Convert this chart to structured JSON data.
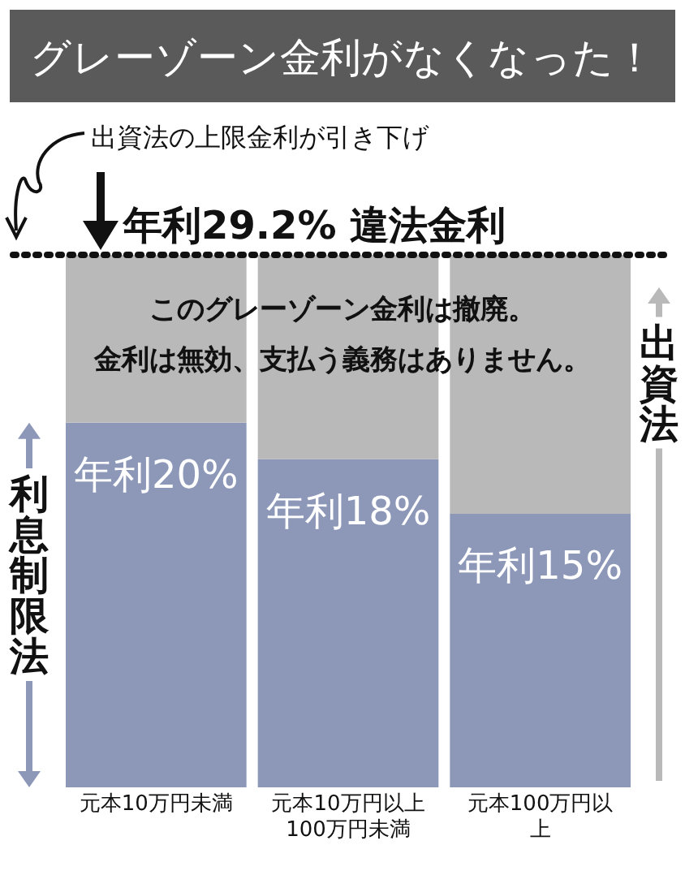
{
  "chart_data": {
    "type": "bar",
    "title": "グレーゾーン金利がなくなった！",
    "categories": [
      "元本10万円未満",
      "元本10万円以上100万円未満",
      "元本100万円以上"
    ],
    "series": [
      {
        "name": "利息制限法",
        "color": "#8d98b8",
        "values": [
          20,
          18,
          15
        ],
        "value_labels": [
          "年利20%",
          "年利18%",
          "年利15%"
        ]
      },
      {
        "name": "出資法",
        "color": "#b9b9b9",
        "values": [
          9.2,
          11.2,
          14.2
        ]
      }
    ],
    "stacked": true,
    "legend": "left",
    "ref_lines": [
      {
        "axis": "y",
        "value": 29.2,
        "label": "年利29.2% 違法金利",
        "line_style": "dotted",
        "color": "#111111"
      }
    ],
    "annotations": [
      "出資法の上限金利が引き下げ",
      "このグレーゾーン金利は撤廃。",
      "金利は無効、支払う義務はありません。"
    ]
  }
}
